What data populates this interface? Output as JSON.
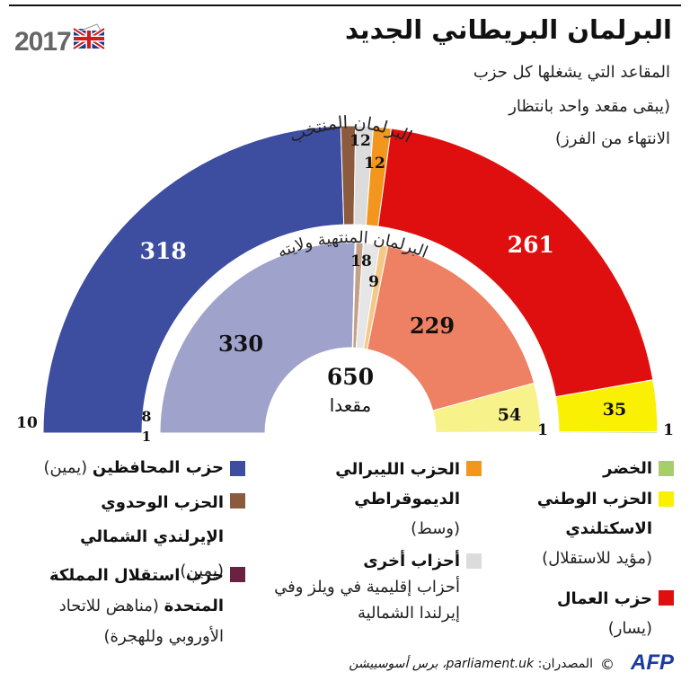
{
  "header": {
    "year": "2017",
    "title": "البرلمان البريطاني الجديد",
    "subtitle_lines": [
      "المقاعد التي يشغلها كل حزب",
      "(يبقى مقعد واحد بانتظار",
      "الانتهاء من الفرز)"
    ]
  },
  "chart_data": [
    {
      "type": "pie",
      "title": "البرلمان المنتخب",
      "parties": [
        "conservative",
        "dup",
        "other",
        "libdem",
        "labour",
        "snp",
        "green"
      ],
      "values": [
        318,
        10,
        12,
        12,
        261,
        35,
        1
      ],
      "labels": [
        "318",
        "10",
        "12",
        "12",
        "261",
        "35",
        "1"
      ]
    },
    {
      "type": "pie",
      "title": "البرلمان المنتهية ولايته",
      "parties": [
        "conservative",
        "ukip",
        "dup",
        "other",
        "libdem",
        "labour",
        "snp",
        "green"
      ],
      "values": [
        330,
        1,
        8,
        18,
        9,
        229,
        54,
        1
      ],
      "labels": [
        "330",
        "1",
        "8",
        "18",
        "9",
        "229",
        "54",
        "1"
      ]
    }
  ],
  "center": {
    "total": "650",
    "unit": "مقعدا"
  },
  "colors": {
    "conservative_outer": "#3d4da0",
    "conservative_inner": "#9fa3cc",
    "dup_outer": "#8c5a3c",
    "dup_inner": "#c4a088",
    "ukip_inner": "#6b2140",
    "other_outer": "#dcdcdc",
    "other_inner": "#e6e6e6",
    "libdem_outer": "#f2961e",
    "libdem_inner": "#f5c888",
    "labour_outer": "#e00f0f",
    "labour_inner": "#ee8063",
    "snp_outer": "#f9f004",
    "snp_inner": "#f8f28a",
    "green_outer": "#a6cf6a",
    "green_inner": "#c3dda0"
  },
  "legend": {
    "conservative": {
      "name": "حزب المحافظين",
      "desc": "(يمين)"
    },
    "dup": {
      "name": "الحزب الوحدوي الإيرلندي الشمالي",
      "desc": "(يمين)"
    },
    "ukip": {
      "name": "حزب استقلال المملكة المتحدة",
      "desc": "(مناهض للاتحاد الأوروبي وللهجرة)"
    },
    "libdem": {
      "name": "الحزب الليبرالي الديموقراطي",
      "desc": "(وسط)"
    },
    "other": {
      "name": "أحزاب أخرى",
      "desc": "أحزاب إقليمية في ويلز وفي إيرلندا الشمالية"
    },
    "green": {
      "name": "الخضر",
      "desc": ""
    },
    "snp": {
      "name": "الحزب الوطني الاسكتلندي",
      "desc": "(مؤيد للاستقلال)"
    },
    "labour": {
      "name": "حزب العمال",
      "desc": "(يسار)"
    }
  },
  "footer": {
    "sources_label": "المصدران:",
    "sources": "parliament.uk، برس أسوسييشن",
    "copyright": "©",
    "agency": "AFP"
  }
}
